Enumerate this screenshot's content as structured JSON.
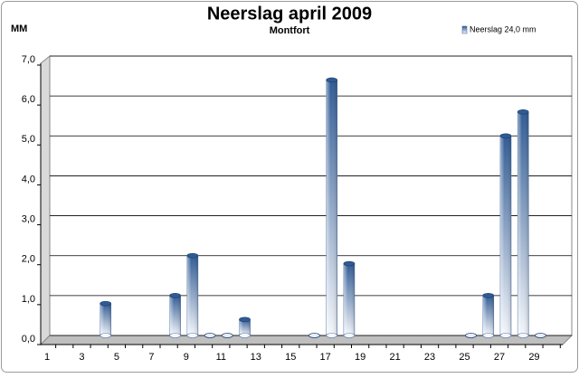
{
  "chart_data": {
    "type": "bar",
    "title": "Neerslag april 2009",
    "subtitle": "Montfort",
    "y_label": "MM",
    "categories": [
      "1",
      null,
      "3",
      null,
      "5",
      null,
      "7",
      null,
      "9",
      null,
      "11",
      null,
      "13",
      null,
      "15",
      null,
      "17",
      null,
      "19",
      null,
      "21",
      null,
      "23",
      null,
      "25",
      null,
      "27",
      null,
      "29",
      null
    ],
    "series": [
      {
        "name": "Neerslag 24,0 mm",
        "color": "#2f5a94",
        "values": [
          null,
          null,
          null,
          0.8,
          null,
          null,
          null,
          1.0,
          2.0,
          0,
          0,
          0.4,
          null,
          null,
          null,
          0,
          6.4,
          1.8,
          null,
          null,
          null,
          null,
          null,
          null,
          0,
          1.0,
          5.0,
          5.6,
          0,
          null
        ]
      }
    ],
    "ylim": [
      0,
      7
    ],
    "yticks": [
      {
        "value": 0,
        "label": "0,0"
      },
      {
        "value": 1,
        "label": "1,0"
      },
      {
        "value": 2,
        "label": "2,0"
      },
      {
        "value": 3,
        "label": "3,0"
      },
      {
        "value": 4,
        "label": "4,0"
      },
      {
        "value": 5,
        "label": "5,0"
      },
      {
        "value": 6,
        "label": "6,0"
      },
      {
        "value": 7,
        "label": "7,0"
      }
    ],
    "grid": true,
    "legend": "top-right"
  }
}
